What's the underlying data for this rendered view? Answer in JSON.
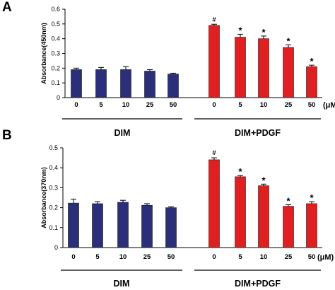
{
  "chart_data": [
    {
      "type": "bar",
      "panel": "A",
      "ylabel": "Absorbance(450nm)",
      "ylim": [
        0,
        0.6
      ],
      "yticks": [
        "0",
        "0.1",
        "0.2",
        "0.3",
        "0.4",
        "0.5",
        "0.6"
      ],
      "categories": [
        "0",
        "5",
        "10",
        "25",
        "50",
        "0",
        "5",
        "10",
        "25",
        "50"
      ],
      "unit": "(μM)",
      "groups": [
        {
          "label": "DIM",
          "color": "#2b2f7a",
          "values": [
            0.19,
            0.19,
            0.19,
            0.18,
            0.16
          ],
          "errors": [
            0.01,
            0.015,
            0.02,
            0.01,
            0.006
          ],
          "marks": [
            "",
            "",
            "",
            "",
            ""
          ]
        },
        {
          "label": "DIM+PDGF",
          "color": "#e02020",
          "values": [
            0.49,
            0.41,
            0.4,
            0.34,
            0.21
          ],
          "errors": [
            0.008,
            0.02,
            0.018,
            0.018,
            0.01
          ],
          "marks": [
            "#",
            "*",
            "*",
            "*",
            "*"
          ]
        }
      ]
    },
    {
      "type": "bar",
      "panel": "B",
      "ylabel": "Absorbance(370nm)",
      "ylim": [
        0,
        0.5
      ],
      "yticks": [
        "0",
        "0.1",
        "0.2",
        "0.3",
        "0.4",
        "0.5"
      ],
      "categories": [
        "0",
        "5",
        "10",
        "25",
        "50",
        "0",
        "5",
        "10",
        "25",
        "50"
      ],
      "unit": "(μM)",
      "groups": [
        {
          "label": "DIM",
          "color": "#2b2f7a",
          "values": [
            0.223,
            0.22,
            0.227,
            0.212,
            0.2
          ],
          "errors": [
            0.02,
            0.01,
            0.01,
            0.008,
            0.004
          ],
          "marks": [
            "",
            "",
            "",
            "",
            ""
          ]
        },
        {
          "label": "DIM+PDGF",
          "color": "#e02020",
          "values": [
            0.44,
            0.355,
            0.31,
            0.207,
            0.22
          ],
          "errors": [
            0.01,
            0.006,
            0.008,
            0.008,
            0.01
          ],
          "marks": [
            "#",
            "*",
            "*",
            "*",
            "*"
          ]
        }
      ]
    }
  ]
}
